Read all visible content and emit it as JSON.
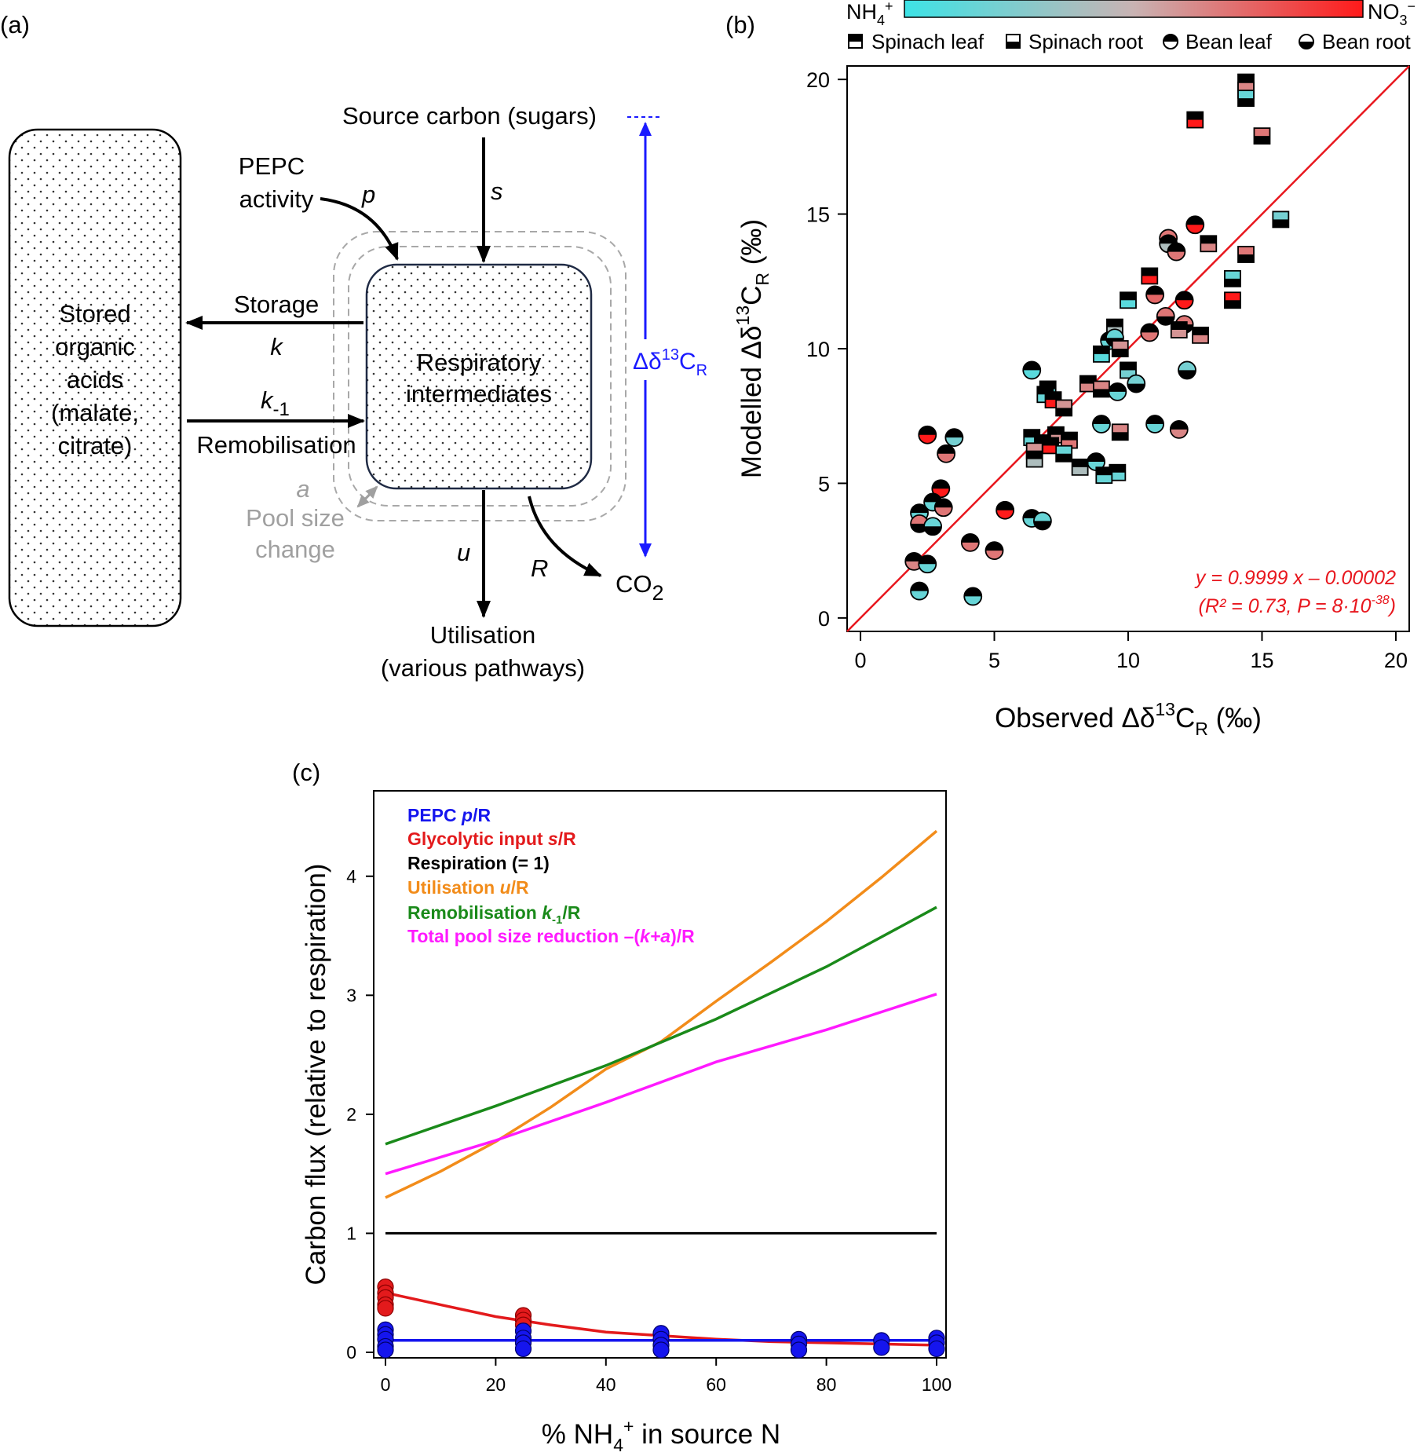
{
  "panel_a": {
    "label": "(a)",
    "stored_box": [
      "Stored",
      "organic",
      "acids",
      "(malate,",
      "citrate)"
    ],
    "resp_box": [
      "Respiratory",
      "intermediates"
    ],
    "source": "Source carbon (sugars)",
    "pepc": [
      "PEPC",
      "activity"
    ],
    "p": "p",
    "s": "s",
    "storage": "Storage",
    "k": "k",
    "k_minus": "k",
    "k_minus_sub": "-1",
    "remobilisation": "Remobilisation",
    "a": "a",
    "pool": [
      "Pool size",
      "change"
    ],
    "u": "u",
    "R": "R",
    "co2": "CO",
    "co2_sub": "2",
    "utilisation": [
      "Utilisation",
      "(various pathways)"
    ],
    "delta_prefix": "Δδ",
    "delta_sup": "13",
    "delta_c": "C",
    "delta_sub": "R",
    "colors": {
      "arrow": "#000000",
      "delta": "#1a1aff",
      "pool": "#a0a0a0",
      "box_border": "#1f2a44"
    }
  },
  "panel_b": {
    "label": "(b)",
    "colorbar": {
      "left": "NH",
      "left_sub": "4",
      "left_sup": "+",
      "right": "NO",
      "right_sub": "3",
      "right_sup": "−",
      "from": "#3de3e6",
      "to": "#ff1a1a"
    },
    "legend": [
      "Spinach leaf",
      "Spinach root",
      "Bean leaf",
      "Bean root"
    ],
    "equation": "y = 0.9999 x – 0.00002",
    "stats_prefix": "(R² = 0.73, P = 8·10",
    "stats_exp": "-38",
    "stats_suffix": ")",
    "equation_color": "#e8171e"
  },
  "panel_c": {
    "label": "(c)",
    "legend": [
      {
        "parts": [
          "PEPC  ",
          "p",
          "/R"
        ],
        "color": "#1515ee"
      },
      {
        "parts": [
          "Glycolytic input  ",
          "s",
          "/R"
        ],
        "color": "#e31a1c"
      },
      {
        "parts": [
          "Respiration  (= 1)",
          "",
          ""
        ],
        "color": "#000000"
      },
      {
        "parts": [
          "Utilisation  ",
          "u",
          "/R"
        ],
        "color": "#f28c1a"
      },
      {
        "parts": [
          "Remobilisation  ",
          "k",
          "/R"
        ],
        "sub": "-1",
        "color": "#1a8a1a"
      },
      {
        "parts": [
          "Total pool size reduction  –(",
          "k+a",
          ")/R"
        ],
        "color": "#ff1aff"
      }
    ]
  },
  "chart_data": [
    {
      "type": "scatter",
      "xlabel_parts": [
        "Observed Δδ",
        "13",
        "C",
        "R",
        " (‰)"
      ],
      "ylabel_parts": [
        "Modelled Δδ",
        "13",
        "C",
        "R",
        " (‰)"
      ],
      "xlim": [
        -0.5,
        20.5
      ],
      "ylim": [
        -0.5,
        20.5
      ],
      "xticks": [
        0,
        5,
        10,
        15,
        20
      ],
      "yticks": [
        0,
        5,
        10,
        15,
        20
      ],
      "fit_line": {
        "slope": 0.9999,
        "intercept": -2e-05
      },
      "marker_legend": {
        "Spinach leaf": "square, top half black",
        "Spinach root": "square, bottom half black",
        "Bean leaf": "circle, top half black",
        "Bean root": "circle, bottom half black"
      },
      "color_scale": "fraction NO3- of source N: 0 = NH4+ (cyan) … 1 = NO3- (red)",
      "points": [
        {
          "x": 14.4,
          "y": 19.9,
          "m": "sq",
          "h": "top",
          "c": 1.0
        },
        {
          "x": 14.4,
          "y": 19.6,
          "m": "sq",
          "h": "bot",
          "c": 0.65
        },
        {
          "x": 14.4,
          "y": 19.3,
          "m": "sq",
          "h": "bot",
          "c": 0.15
        },
        {
          "x": 15.0,
          "y": 17.9,
          "m": "sq",
          "h": "bot",
          "c": 0.7
        },
        {
          "x": 12.5,
          "y": 18.5,
          "m": "sq",
          "h": "top",
          "c": 1.0
        },
        {
          "x": 15.7,
          "y": 14.8,
          "m": "sq",
          "h": "bot",
          "c": 0.2
        },
        {
          "x": 12.5,
          "y": 14.6,
          "m": "ci",
          "h": "top",
          "c": 1.0
        },
        {
          "x": 11.5,
          "y": 14.1,
          "m": "ci",
          "h": "bot",
          "c": 0.7
        },
        {
          "x": 11.5,
          "y": 13.9,
          "m": "ci",
          "h": "top",
          "c": 0.4
        },
        {
          "x": 13.0,
          "y": 13.9,
          "m": "sq",
          "h": "top",
          "c": 0.65
        },
        {
          "x": 11.8,
          "y": 13.6,
          "m": "ci",
          "h": "top",
          "c": 0.7
        },
        {
          "x": 14.4,
          "y": 13.5,
          "m": "sq",
          "h": "bot",
          "c": 0.7
        },
        {
          "x": 10.8,
          "y": 12.7,
          "m": "sq",
          "h": "top",
          "c": 1.0
        },
        {
          "x": 13.9,
          "y": 12.6,
          "m": "sq",
          "h": "bot",
          "c": 0.15
        },
        {
          "x": 11.0,
          "y": 12.0,
          "m": "ci",
          "h": "top",
          "c": 0.75
        },
        {
          "x": 12.1,
          "y": 11.8,
          "m": "ci",
          "h": "top",
          "c": 1.0
        },
        {
          "x": 10.0,
          "y": 11.8,
          "m": "sq",
          "h": "top",
          "c": 0.1
        },
        {
          "x": 13.9,
          "y": 11.8,
          "m": "sq",
          "h": "bot",
          "c": 1.0
        },
        {
          "x": 11.4,
          "y": 11.2,
          "m": "ci",
          "h": "bot",
          "c": 0.7
        },
        {
          "x": 12.1,
          "y": 10.9,
          "m": "ci",
          "h": "bot",
          "c": 0.7
        },
        {
          "x": 11.9,
          "y": 10.7,
          "m": "sq",
          "h": "top",
          "c": 0.6
        },
        {
          "x": 12.7,
          "y": 10.5,
          "m": "sq",
          "h": "top",
          "c": 0.65
        },
        {
          "x": 10.8,
          "y": 10.6,
          "m": "ci",
          "h": "top",
          "c": 0.7
        },
        {
          "x": 9.5,
          "y": 10.8,
          "m": "sq",
          "h": "top",
          "c": 0.4
        },
        {
          "x": 9.3,
          "y": 10.3,
          "m": "ci",
          "h": "top",
          "c": 0.15
        },
        {
          "x": 9.5,
          "y": 10.4,
          "m": "ci",
          "h": "bot",
          "c": 0.15
        },
        {
          "x": 9.7,
          "y": 10.0,
          "m": "sq",
          "h": "bot",
          "c": 0.6
        },
        {
          "x": 9.0,
          "y": 9.8,
          "m": "sq",
          "h": "top",
          "c": 0.1
        },
        {
          "x": 12.2,
          "y": 9.2,
          "m": "ci",
          "h": "bot",
          "c": 0.2
        },
        {
          "x": 10.0,
          "y": 9.2,
          "m": "sq",
          "h": "top",
          "c": 0.2
        },
        {
          "x": 6.4,
          "y": 9.2,
          "m": "ci",
          "h": "top",
          "c": 0.1
        },
        {
          "x": 10.3,
          "y": 8.7,
          "m": "ci",
          "h": "bot",
          "c": 0.2
        },
        {
          "x": 7.0,
          "y": 8.5,
          "m": "sq",
          "h": "top",
          "c": 0.15
        },
        {
          "x": 8.5,
          "y": 8.7,
          "m": "sq",
          "h": "top",
          "c": 0.65
        },
        {
          "x": 9.0,
          "y": 8.5,
          "m": "sq",
          "h": "bot",
          "c": 0.65
        },
        {
          "x": 9.6,
          "y": 8.4,
          "m": "ci",
          "h": "top",
          "c": 0.15
        },
        {
          "x": 6.9,
          "y": 8.3,
          "m": "sq",
          "h": "top",
          "c": 0.15
        },
        {
          "x": 7.2,
          "y": 8.1,
          "m": "sq",
          "h": "top",
          "c": 1.0
        },
        {
          "x": 7.6,
          "y": 7.8,
          "m": "sq",
          "h": "bot",
          "c": 0.6
        },
        {
          "x": 9.0,
          "y": 7.2,
          "m": "ci",
          "h": "top",
          "c": 0.15
        },
        {
          "x": 11.0,
          "y": 7.2,
          "m": "ci",
          "h": "top",
          "c": 0.15
        },
        {
          "x": 11.9,
          "y": 7.0,
          "m": "ci",
          "h": "top",
          "c": 0.65
        },
        {
          "x": 9.7,
          "y": 6.9,
          "m": "sq",
          "h": "bot",
          "c": 0.65
        },
        {
          "x": 7.3,
          "y": 6.8,
          "m": "sq",
          "h": "top",
          "c": 0.6
        },
        {
          "x": 6.4,
          "y": 6.7,
          "m": "sq",
          "h": "top",
          "c": 0.15
        },
        {
          "x": 7.8,
          "y": 6.6,
          "m": "sq",
          "h": "top",
          "c": 0.7
        },
        {
          "x": 6.8,
          "y": 6.5,
          "m": "sq",
          "h": "top",
          "c": 0.65
        },
        {
          "x": 7.1,
          "y": 6.4,
          "m": "sq",
          "h": "top",
          "c": 1.0
        },
        {
          "x": 6.5,
          "y": 6.2,
          "m": "sq",
          "h": "bot",
          "c": 0.6
        },
        {
          "x": 7.6,
          "y": 6.1,
          "m": "sq",
          "h": "bot",
          "c": 0.15
        },
        {
          "x": 6.5,
          "y": 5.9,
          "m": "sq",
          "h": "top",
          "c": 0.4
        },
        {
          "x": 8.8,
          "y": 5.8,
          "m": "ci",
          "h": "top",
          "c": 0.15
        },
        {
          "x": 8.2,
          "y": 5.6,
          "m": "sq",
          "h": "top",
          "c": 0.4
        },
        {
          "x": 9.6,
          "y": 5.4,
          "m": "sq",
          "h": "top",
          "c": 0.15
        },
        {
          "x": 9.1,
          "y": 5.3,
          "m": "sq",
          "h": "top",
          "c": 0.15
        },
        {
          "x": 2.5,
          "y": 6.8,
          "m": "ci",
          "h": "top",
          "c": 1.0
        },
        {
          "x": 3.5,
          "y": 6.7,
          "m": "ci",
          "h": "top",
          "c": 0.2
        },
        {
          "x": 3.2,
          "y": 6.1,
          "m": "ci",
          "h": "top",
          "c": 0.7
        },
        {
          "x": 3.0,
          "y": 4.8,
          "m": "ci",
          "h": "top",
          "c": 1.0
        },
        {
          "x": 2.7,
          "y": 4.3,
          "m": "ci",
          "h": "top",
          "c": 0.15
        },
        {
          "x": 3.1,
          "y": 4.1,
          "m": "ci",
          "h": "top",
          "c": 0.7
        },
        {
          "x": 2.2,
          "y": 3.9,
          "m": "ci",
          "h": "top",
          "c": 0.15
        },
        {
          "x": 5.4,
          "y": 4.0,
          "m": "ci",
          "h": "top",
          "c": 1.0
        },
        {
          "x": 6.4,
          "y": 3.7,
          "m": "ci",
          "h": "top",
          "c": 0.15
        },
        {
          "x": 6.8,
          "y": 3.6,
          "m": "ci",
          "h": "bot",
          "c": 0.15
        },
        {
          "x": 2.2,
          "y": 3.5,
          "m": "ci",
          "h": "bot",
          "c": 0.7
        },
        {
          "x": 2.7,
          "y": 3.4,
          "m": "ci",
          "h": "bot",
          "c": 0.15
        },
        {
          "x": 4.1,
          "y": 2.8,
          "m": "ci",
          "h": "top",
          "c": 0.7
        },
        {
          "x": 5.0,
          "y": 2.5,
          "m": "ci",
          "h": "top",
          "c": 0.7
        },
        {
          "x": 2.0,
          "y": 2.1,
          "m": "ci",
          "h": "top",
          "c": 0.65
        },
        {
          "x": 2.5,
          "y": 2.0,
          "m": "ci",
          "h": "top",
          "c": 0.15
        },
        {
          "x": 2.2,
          "y": 1.0,
          "m": "ci",
          "h": "top",
          "c": 0.15
        },
        {
          "x": 4.2,
          "y": 0.8,
          "m": "ci",
          "h": "top",
          "c": 0.15
        }
      ]
    },
    {
      "type": "line",
      "xlabel_parts": [
        "% NH",
        "4",
        "+",
        " in source N"
      ],
      "ylabel": "Carbon flux (relative to respiration)",
      "xlim": [
        0,
        100
      ],
      "ylim": [
        0,
        4.5
      ],
      "xticks": [
        0,
        20,
        40,
        60,
        80,
        100
      ],
      "yticks": [
        0,
        1,
        2,
        3,
        4
      ],
      "series": [
        {
          "name": "Utilisation u/R",
          "color": "#f28c1a",
          "x": [
            0,
            10,
            20,
            30,
            40,
            50,
            60,
            70,
            80,
            90,
            100
          ],
          "values": [
            1.3,
            1.52,
            1.77,
            2.06,
            2.38,
            2.61,
            2.95,
            3.28,
            3.62,
            3.99,
            4.38
          ]
        },
        {
          "name": "Remobilisation k-1/R",
          "color": "#1a8a1a",
          "x": [
            0,
            20,
            40,
            60,
            80,
            100
          ],
          "values": [
            1.75,
            2.07,
            2.41,
            2.8,
            3.24,
            3.74
          ]
        },
        {
          "name": "Total pool size reduction –(k+a)/R",
          "color": "#ff1aff",
          "x": [
            0,
            20,
            40,
            60,
            80,
            100
          ],
          "values": [
            1.5,
            1.78,
            2.1,
            2.44,
            2.71,
            3.01
          ]
        },
        {
          "name": "Respiration (= 1)",
          "color": "#000000",
          "x": [
            0,
            100
          ],
          "values": [
            1.0,
            1.0
          ]
        },
        {
          "name": "Glycolytic input s/R",
          "color": "#e31a1c",
          "x": [
            0,
            10,
            20,
            30,
            40,
            50,
            60,
            70,
            80,
            90,
            100
          ],
          "values": [
            0.5,
            0.4,
            0.3,
            0.23,
            0.17,
            0.14,
            0.11,
            0.09,
            0.08,
            0.07,
            0.06
          ]
        },
        {
          "name": "PEPC p/R",
          "color": "#1515ee",
          "x": [
            0,
            100
          ],
          "values": [
            0.1,
            0.1
          ]
        }
      ],
      "points_s": {
        "x": [
          0,
          0,
          0,
          0,
          0,
          25,
          25,
          25
        ],
        "values": [
          0.55,
          0.5,
          0.46,
          0.4,
          0.37,
          0.31,
          0.27,
          0.23
        ]
      },
      "points_p": {
        "x": [
          0,
          0,
          0,
          0,
          0,
          25,
          25,
          25,
          25,
          50,
          50,
          50,
          50,
          75,
          75,
          75,
          90,
          90,
          100,
          100,
          100
        ],
        "values": [
          0.19,
          0.15,
          0.11,
          0.05,
          0.02,
          0.18,
          0.12,
          0.08,
          0.03,
          0.16,
          0.11,
          0.06,
          0.02,
          0.11,
          0.07,
          0.02,
          0.1,
          0.04,
          0.12,
          0.08,
          0.03
        ]
      }
    }
  ]
}
